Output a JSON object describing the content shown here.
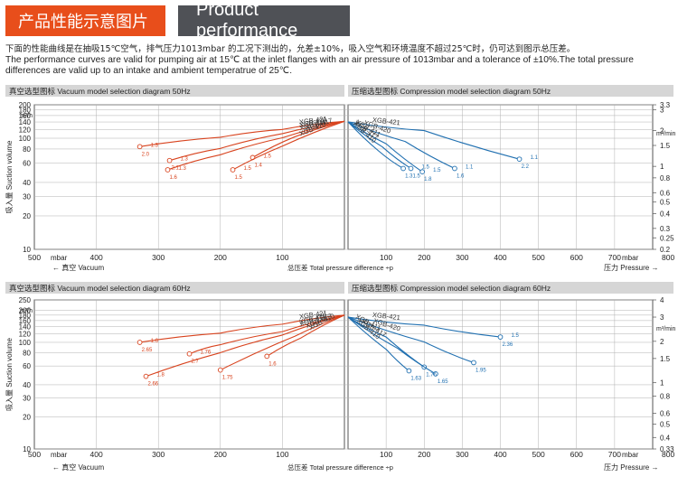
{
  "header": {
    "title_cn": "产品性能示意图片",
    "title_en": "Product performance"
  },
  "description": {
    "cn": "下面的性能曲线是在抽吸15℃空气，排气压力1013mbar 的工况下测出的，允差±10%，吸入空气和环境温度不超过25℃时，仍可达到图示总压差。",
    "en": "The performance curves are valid for pumping air at 15℃ at the inlet flanges with an air pressure of 1013mbar and a tolerance of ±10%.The total pressure differences are valid up to an intake and ambient temperatrue of 25℃."
  },
  "axis_text": {
    "ylabel": "吸入量 Suction volume",
    "unit_m3h": "m³/h",
    "unit_m3min": "m³/min",
    "mbar": "mbar",
    "vacuum": "真空 Vacuum",
    "total_pd": "总压差 Total pressure difference ÷p",
    "pressure": "压力 Pressure"
  },
  "colors": {
    "vacuum": "#d8431e",
    "compression": "#1f6fb0",
    "grid": "#b0b0b0",
    "header_bg": "#e84e1b",
    "header_dark": "#4f5156",
    "band": "#d6d6d6"
  },
  "chart_data": [
    {
      "type": "line",
      "title": "真空选型图标 Vacuum model selection diagram 50Hz",
      "xlabel": "真空 Vacuum (mbar)",
      "ylabel": "吸入量 Suction volume (m³/h)",
      "x_reversed": true,
      "xlim": [
        0,
        500
      ],
      "ylim": [
        10,
        200
      ],
      "y_log": true,
      "x_ticks": [
        500,
        400,
        300,
        200,
        100
      ],
      "y_ticks": [
        10,
        20,
        30,
        40,
        60,
        80,
        100,
        120,
        140,
        160,
        180,
        200
      ],
      "series": [
        {
          "name": "XGB-421",
          "x": [
            0,
            100,
            200,
            330
          ],
          "y": [
            142,
            120,
            102,
            84
          ]
        },
        {
          "name": "XGB-420",
          "x": [
            0,
            100,
            200,
            282
          ],
          "y": [
            142,
            110,
            81,
            63
          ]
        },
        {
          "name": "XGB-411",
          "x": [
            0,
            100,
            200,
            285
          ],
          "y": [
            142,
            101,
            71,
            52
          ]
        },
        {
          "name": "XGB-417",
          "x": [
            0,
            80,
            148
          ],
          "y": [
            142,
            103,
            67
          ]
        },
        {
          "name": "XGB-410",
          "x": [
            0,
            100,
            180
          ],
          "y": [
            142,
            85,
            52
          ]
        }
      ],
      "annotations": [
        "2.0",
        "2.1",
        "1.6",
        "1.4",
        "1.5",
        "1.3",
        "1.3",
        "1.3",
        "1.5",
        "1.5"
      ]
    },
    {
      "type": "line",
      "title": "压缩选型图标 Compression model selection diagram 50Hz",
      "xlabel": "压力 Pressure (mbar)",
      "ylabel": "吸入量 Suction volume (m³/min)",
      "xlim": [
        0,
        800
      ],
      "ylim": [
        0.2,
        3.3
      ],
      "y_log": true,
      "x_ticks": [
        100,
        200,
        300,
        400,
        500,
        600,
        700,
        800
      ],
      "y_ticks": [
        0.2,
        0.25,
        0.3,
        0.4,
        0.5,
        0.6,
        0.8,
        1,
        1.5,
        2,
        3,
        3.3
      ],
      "series": [
        {
          "name": "XGB-421",
          "x": [
            0,
            200,
            450
          ],
          "y": [
            2.37,
            2.0,
            1.15
          ]
        },
        {
          "name": "XGB-420",
          "x": [
            0,
            150,
            280
          ],
          "y": [
            2.37,
            1.62,
            0.96
          ]
        },
        {
          "name": "XGB-411",
          "x": [
            0,
            100,
            195
          ],
          "y": [
            2.37,
            1.55,
            0.9
          ]
        },
        {
          "name": "XGB-417",
          "x": [
            0,
            90,
            165
          ],
          "y": [
            2.37,
            1.46,
            0.96
          ]
        },
        {
          "name": "XGB-410",
          "x": [
            0,
            80,
            145
          ],
          "y": [
            2.37,
            1.35,
            0.96
          ]
        }
      ],
      "annotations": [
        "2.2",
        "1.6",
        "1.8",
        "1.5",
        "1.3",
        "1.1",
        "1.1",
        "1.5",
        "1.5"
      ]
    },
    {
      "type": "line",
      "title": "真空选型图标 Vacuum model selection diagram 60Hz",
      "xlabel": "真空 Vacuum (mbar)",
      "ylabel": "吸入量 Suction volume (m³/h)",
      "x_reversed": true,
      "xlim": [
        0,
        500
      ],
      "ylim": [
        10,
        250
      ],
      "y_log": true,
      "x_ticks": [
        500,
        400,
        300,
        200,
        100
      ],
      "y_ticks": [
        10,
        20,
        30,
        40,
        60,
        80,
        100,
        120,
        140,
        160,
        180,
        200,
        250
      ],
      "series": [
        {
          "name": "XGB-421",
          "x": [
            0,
            100,
            200,
            330
          ],
          "y": [
            180,
            148,
            122,
            100
          ]
        },
        {
          "name": "XGB-420",
          "x": [
            0,
            100,
            200,
            250
          ],
          "y": [
            180,
            126,
            95,
            78
          ]
        },
        {
          "name": "XGB-411",
          "x": [
            0,
            100,
            200,
            320
          ],
          "y": [
            180,
            117,
            80,
            48
          ]
        },
        {
          "name": "XGB-417",
          "x": [
            0,
            80,
            200
          ],
          "y": [
            180,
            114,
            55
          ]
        },
        {
          "name": "XGB-410",
          "x": [
            0,
            70,
            125
          ],
          "y": [
            180,
            110,
            74
          ]
        }
      ],
      "annotations": [
        "2.65",
        "2.7",
        "2.66",
        "1.75",
        "1.6",
        "1.6",
        "1.76",
        "1.8"
      ]
    },
    {
      "type": "line",
      "title": "压缩选型图标 Compression model selection diagram 60Hz",
      "xlabel": "压力 Pressure (mbar)",
      "ylabel": "吸入量 Suction volume (m³/min)",
      "xlim": [
        0,
        800
      ],
      "ylim": [
        0.33,
        4
      ],
      "y_log": true,
      "x_ticks": [
        100,
        200,
        300,
        400,
        500,
        600,
        700,
        800
      ],
      "y_ticks": [
        0.33,
        0.4,
        0.5,
        0.6,
        0.8,
        1,
        1.5,
        2,
        3,
        4
      ],
      "series": [
        {
          "name": "XGB-421",
          "x": [
            0,
            200,
            400
          ],
          "y": [
            3.0,
            2.62,
            2.15
          ]
        },
        {
          "name": "XGB-420",
          "x": [
            0,
            200,
            330
          ],
          "y": [
            3.0,
            1.98,
            1.4
          ]
        },
        {
          "name": "XGB-411",
          "x": [
            0,
            100,
            200
          ],
          "y": [
            3.0,
            2.15,
            1.3
          ]
        },
        {
          "name": "XGB-417",
          "x": [
            0,
            130,
            230
          ],
          "y": [
            3.0,
            1.78,
            1.16
          ]
        },
        {
          "name": "XGB-410",
          "x": [
            0,
            100,
            160
          ],
          "y": [
            3.0,
            1.75,
            1.22
          ]
        }
      ],
      "annotations": [
        "2.36",
        "1.95",
        "1.76",
        "1.65",
        "1.63",
        "1.5"
      ]
    }
  ]
}
